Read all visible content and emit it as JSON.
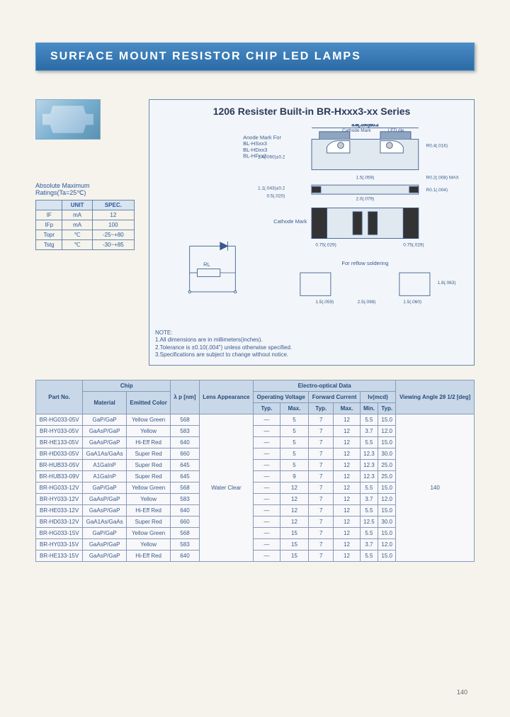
{
  "banner_title": "SURFACE MOUNT RESISTOR CHIP LED LAMPS",
  "diagram_title": "1206 Resister Built-in BR-Hxxx3-xx Series",
  "diagram_labels": {
    "anode_mark": "Anode Mark For",
    "anode_lines": [
      "BL-HSxx3",
      "BL-HDxx3",
      "BL-HFxx3"
    ],
    "cathode_mark": "Cathode Mark",
    "led_die": "LED die",
    "reflow_soldering": "For reflow soldering",
    "dims": [
      "3.8(.150)±0.2",
      "1.8(.055)",
      "1.0(.04)",
      "R0.4(.016)",
      "1.4(.060)±0.2",
      "1.5(.059)",
      "R0.2(.008) MAX",
      "1.1(.043)±0.2",
      "0.5(.020)",
      "R0.1(.004)",
      "2.0(.079)",
      "0.75(.029)",
      "0.75(.029)",
      "1.5(.059)",
      "2.5(.098)",
      "1.5(.060)",
      "1.8(.063)"
    ]
  },
  "notes_title": "NOTE:",
  "notes": [
    "1.All dimensions are in millimeters(inches).",
    "2.Tolerance is ±0.10(.004\") unless otherwise specified.",
    "3.Specifications are subject to change without notice."
  ],
  "abs_max_title": "Absolute Maximum Ratings(Ta=25℃)",
  "abs_max": {
    "header": [
      "",
      "UNIT",
      "SPEC."
    ],
    "rows": [
      [
        "IF",
        "mA",
        "12"
      ],
      [
        "IFp",
        "mA",
        "100"
      ],
      [
        "Topr",
        "℃",
        "-25~+80"
      ],
      [
        "Tstg",
        "℃",
        "-30~+85"
      ]
    ]
  },
  "circuit_labels": {
    "rl": "RL"
  },
  "main_table": {
    "header_group1": [
      "Part No.",
      "Chip",
      "",
      "λ p\n[nm]",
      "Lens\nAppearance",
      "Electro-optical Data",
      "",
      "",
      "",
      "",
      "",
      "Viewing\nAngle\n2θ 1/2\n[deg]"
    ],
    "header_group2": [
      "",
      "Material",
      "Emitted Color",
      "",
      "",
      "Operating\nVoltage",
      "",
      "Forward\nCurrent",
      "",
      "Iv(mcd)",
      "",
      ""
    ],
    "header_group3": [
      "",
      "",
      "",
      "",
      "",
      "Typ.",
      "Max.",
      "Typ.",
      "Max.",
      "Min.",
      "Typ.",
      ""
    ],
    "rows": [
      [
        "BR-HG033-05V",
        "GaP/GaP",
        "Yellow Green",
        "568",
        "Water Clear",
        "—",
        "5",
        "7",
        "12",
        "5.5",
        "15.0",
        "140"
      ],
      [
        "BR-HY033-05V",
        "GaAsP/GaP",
        "Yellow",
        "583",
        "",
        "—",
        "5",
        "7",
        "12",
        "3.7",
        "12.0",
        ""
      ],
      [
        "BR-HE133-05V",
        "GaAsP/GaP",
        "Hi-Eff Red",
        "640",
        "",
        "—",
        "5",
        "7",
        "12",
        "5.5",
        "15.0",
        ""
      ],
      [
        "BR-HD033-05V",
        "GaA1As/GaAs",
        "Super Red",
        "660",
        "",
        "—",
        "5",
        "7",
        "12",
        "12.3",
        "30.0",
        ""
      ],
      [
        "BR-HUB33-05V",
        "A1GaInP",
        "Super Red",
        "645",
        "",
        "—",
        "5",
        "7",
        "12",
        "12.3",
        "25.0",
        ""
      ],
      [
        "BR-HUB33-09V",
        "A1GaInP",
        "Super Red",
        "645",
        "",
        "—",
        "9",
        "7",
        "12",
        "12.3",
        "25.0",
        ""
      ],
      [
        "BR-HG033-12V",
        "GaP/GaP",
        "Yellow Green",
        "568",
        "",
        "—",
        "12",
        "7",
        "12",
        "5.5",
        "15.0",
        ""
      ],
      [
        "BR-HY033-12V",
        "GaAsP/GaP",
        "Yellow",
        "583",
        "",
        "—",
        "12",
        "7",
        "12",
        "3.7",
        "12.0",
        ""
      ],
      [
        "BR-HE033-12V",
        "GaAsP/GaP",
        "Hi-Eff Red",
        "640",
        "",
        "—",
        "12",
        "7",
        "12",
        "5.5",
        "15.0",
        ""
      ],
      [
        "BR-HD033-12V",
        "GaA1As/GaAs",
        "Super Red",
        "660",
        "",
        "—",
        "12",
        "7",
        "12",
        "12.5",
        "30.0",
        ""
      ],
      [
        "BR-HG033-15V",
        "GaP/GaP",
        "Yellow Green",
        "568",
        "",
        "—",
        "15",
        "7",
        "12",
        "5.5",
        "15.0",
        ""
      ],
      [
        "BR-HY033-15V",
        "GaAsP/GaP",
        "Yellow",
        "583",
        "",
        "—",
        "15",
        "7",
        "12",
        "3.7",
        "12.0",
        ""
      ],
      [
        "BR-HE133-15V",
        "GaAsP/GaP",
        "Hi-Eff Red",
        "640",
        "",
        "—",
        "15",
        "7",
        "12",
        "5.5",
        "15.0",
        ""
      ]
    ]
  },
  "page_number": "140",
  "colors": {
    "page_bg": "#f5f3ec",
    "banner_bg_top": "#4a8bc5",
    "banner_bg_bottom": "#2a6ba5",
    "banner_text": "#ffffff",
    "border": "#6688aa",
    "table_border": "#8899bb",
    "table_header_bg": "#c8d8e8",
    "table_cell_bg": "#f8f8fa",
    "text_blue": "#2a5aa0",
    "text_dark": "#2a3a5a",
    "diagram_bg": "#f2f6fa"
  }
}
